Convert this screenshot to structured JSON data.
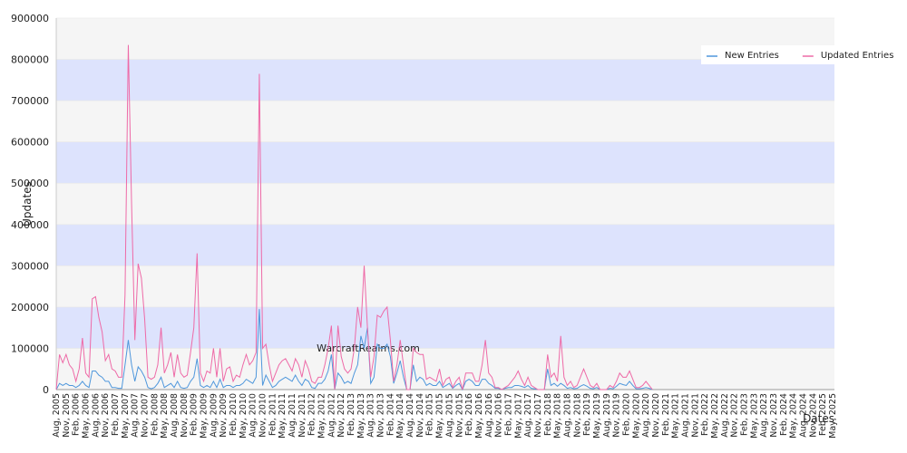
{
  "chart_data": {
    "type": "line",
    "y_label": "Updates",
    "x_label": "Dates",
    "watermark": "WarcraftRealms.com",
    "ylim": [
      0,
      900000
    ],
    "yticks": [
      0,
      100000,
      200000,
      300000,
      400000,
      500000,
      600000,
      700000,
      800000,
      900000
    ],
    "band_colors": [
      "#f5f5f5",
      "#dde3fd"
    ],
    "categories": [
      "Aug, 2005",
      null,
      null,
      "Nov, 2005",
      null,
      null,
      "Feb, 2006",
      null,
      null,
      "May, 2006",
      null,
      null,
      "Aug, 2006",
      null,
      null,
      "Nov, 2006",
      null,
      null,
      "Feb, 2007",
      null,
      null,
      "May, 2007",
      null,
      null,
      "Aug, 2007",
      null,
      null,
      "Nov, 2007",
      null,
      null,
      "Feb, 2008",
      null,
      null,
      "May, 2008",
      null,
      null,
      "Aug, 2008",
      null,
      null,
      "Nov, 2008",
      null,
      null,
      "Feb, 2009",
      null,
      null,
      "May, 2009",
      null,
      null,
      "Aug, 2009",
      null,
      null,
      "Nov, 2009",
      null,
      null,
      "Feb, 2010",
      null,
      null,
      "May, 2010",
      null,
      null,
      "Aug, 2010",
      null,
      null,
      "Nov, 2010",
      null,
      null,
      "Feb, 2011",
      null,
      null,
      "May, 2011",
      null,
      null,
      "Aug, 2011",
      null,
      null,
      "Nov, 2011",
      null,
      null,
      "Feb, 2012",
      null,
      null,
      "May, 2012",
      null,
      null,
      "Aug, 2012",
      null,
      null,
      "Nov, 2012",
      null,
      null,
      "Feb, 2013",
      null,
      null,
      "May, 2013",
      null,
      null,
      "Aug, 2013",
      null,
      null,
      "Nov, 2013",
      null,
      null,
      "Feb, 2014",
      null,
      null,
      "May, 2014",
      null,
      null,
      "Aug, 2014",
      null,
      null,
      "Nov, 2014",
      null,
      null,
      "Feb, 2015",
      null,
      null,
      "May, 2015",
      null,
      null,
      "Aug, 2015",
      null,
      null,
      "Nov, 2015",
      null,
      null,
      "Feb, 2016",
      null,
      null,
      "May, 2016",
      null,
      null,
      "Aug, 2016",
      null,
      null,
      "Nov, 2016",
      null,
      null,
      "Feb, 2017",
      null,
      null,
      "May, 2017",
      null,
      null,
      "Aug, 2017",
      null,
      null,
      "Nov, 2017",
      null,
      null,
      "Feb, 2018",
      null,
      null,
      "May, 2018",
      null,
      null,
      "Aug, 2018",
      null,
      null,
      "Nov, 2018",
      null,
      null,
      "Feb, 2019",
      null,
      null,
      "May, 2019",
      null,
      null,
      "Aug, 2019",
      null,
      null,
      "Nov, 2019",
      null,
      null,
      "Feb, 2020",
      null,
      null,
      "May, 2020",
      null,
      null,
      "Aug, 2020",
      null,
      null,
      "Nov, 2020",
      null,
      null,
      "Feb, 2021",
      null,
      null,
      "May, 2021",
      null,
      null,
      "Aug, 2021",
      null,
      null,
      "Nov, 2021",
      null,
      null,
      "Feb, 2022",
      null,
      null,
      "May, 2022",
      null,
      null,
      "Aug, 2022",
      null,
      null,
      "Nov, 2022",
      null,
      null,
      "Feb, 2023",
      null,
      null,
      "May, 2023",
      null,
      null,
      "Aug, 2023",
      null,
      null,
      "Nov, 2023",
      null,
      null,
      "Feb, 2024",
      null,
      null,
      "May, 2024",
      null,
      null,
      "Aug, 2024",
      null,
      null,
      "Nov, 2024",
      null,
      null,
      "Feb, 2025",
      null,
      null,
      "May, 2025"
    ],
    "series": [
      {
        "name": "New Entries",
        "color": "#4f97dc",
        "values": [
          0,
          15000,
          10000,
          15000,
          10000,
          10000,
          5000,
          10000,
          20000,
          10000,
          5000,
          45000,
          45000,
          35000,
          30000,
          20000,
          20000,
          5000,
          5000,
          3000,
          3000,
          60000,
          120000,
          60000,
          20000,
          55000,
          45000,
          30000,
          5000,
          2000,
          5000,
          15000,
          30000,
          5000,
          10000,
          15000,
          5000,
          20000,
          5000,
          3000,
          5000,
          20000,
          30000,
          75000,
          10000,
          5000,
          10000,
          5000,
          20000,
          5000,
          25000,
          5000,
          10000,
          10000,
          5000,
          10000,
          10000,
          15000,
          25000,
          20000,
          15000,
          30000,
          195000,
          10000,
          35000,
          20000,
          5000,
          10000,
          20000,
          25000,
          30000,
          25000,
          20000,
          35000,
          20000,
          10000,
          25000,
          20000,
          5000,
          3000,
          15000,
          15000,
          25000,
          45000,
          85000,
          0,
          40000,
          30000,
          15000,
          20000,
          15000,
          40000,
          60000,
          130000,
          100000,
          150000,
          15000,
          30000,
          110000,
          100000,
          100000,
          110000,
          80000,
          15000,
          40000,
          70000,
          30000,
          0,
          0,
          60000,
          20000,
          30000,
          25000,
          10000,
          15000,
          10000,
          10000,
          20000,
          5000,
          10000,
          15000,
          3000,
          10000,
          15000,
          0,
          20000,
          25000,
          20000,
          10000,
          10000,
          25000,
          25000,
          15000,
          10000,
          3000,
          3000,
          0,
          3000,
          5000,
          5000,
          10000,
          10000,
          8000,
          5000,
          10000,
          3000,
          2000,
          0,
          0,
          0,
          50000,
          10000,
          15000,
          8000,
          15000,
          10000,
          3000,
          5000,
          2000,
          3000,
          8000,
          12000,
          8000,
          3000,
          2000,
          5000,
          0,
          0,
          0,
          3000,
          2000,
          8000,
          15000,
          12000,
          10000,
          20000,
          10000,
          2000,
          2000,
          3000,
          5000,
          3000,
          0,
          null,
          null,
          null,
          null,
          null,
          null,
          null,
          null,
          null,
          null,
          null,
          null,
          null,
          null,
          null,
          null,
          null,
          null,
          null,
          null,
          null,
          null,
          null,
          null,
          null,
          null,
          null,
          null,
          null,
          null,
          null,
          null,
          null,
          null,
          null,
          null,
          null,
          null,
          null,
          null,
          null,
          null,
          null,
          null,
          null,
          null,
          null,
          null,
          null,
          null,
          null,
          null,
          null,
          null,
          null
        ]
      },
      {
        "name": "Updated Entries",
        "color": "#ee6aa7",
        "values": [
          0,
          85000,
          65000,
          85000,
          60000,
          50000,
          20000,
          50000,
          125000,
          40000,
          30000,
          220000,
          225000,
          175000,
          140000,
          70000,
          85000,
          50000,
          45000,
          30000,
          30000,
          230000,
          835000,
          450000,
          120000,
          305000,
          270000,
          170000,
          30000,
          25000,
          30000,
          60000,
          150000,
          40000,
          60000,
          90000,
          30000,
          85000,
          40000,
          30000,
          35000,
          90000,
          150000,
          330000,
          40000,
          20000,
          45000,
          40000,
          100000,
          30000,
          100000,
          20000,
          50000,
          55000,
          20000,
          35000,
          30000,
          60000,
          85000,
          60000,
          70000,
          90000,
          765000,
          100000,
          110000,
          60000,
          20000,
          40000,
          60000,
          70000,
          75000,
          60000,
          45000,
          75000,
          60000,
          30000,
          70000,
          50000,
          20000,
          15000,
          30000,
          30000,
          60000,
          100000,
          155000,
          0,
          155000,
          80000,
          50000,
          40000,
          50000,
          100000,
          200000,
          150000,
          300000,
          150000,
          30000,
          80000,
          180000,
          175000,
          190000,
          200000,
          120000,
          20000,
          60000,
          120000,
          60000,
          0,
          0,
          100000,
          90000,
          85000,
          85000,
          25000,
          30000,
          25000,
          20000,
          50000,
          10000,
          25000,
          30000,
          5000,
          20000,
          30000,
          0,
          40000,
          40000,
          40000,
          20000,
          20000,
          60000,
          120000,
          40000,
          30000,
          5000,
          5000,
          0,
          5000,
          10000,
          20000,
          30000,
          45000,
          25000,
          10000,
          30000,
          10000,
          5000,
          0,
          0,
          0,
          85000,
          30000,
          40000,
          20000,
          130000,
          30000,
          10000,
          20000,
          5000,
          10000,
          30000,
          50000,
          30000,
          10000,
          5000,
          15000,
          0,
          0,
          0,
          10000,
          5000,
          20000,
          40000,
          30000,
          30000,
          45000,
          25000,
          5000,
          5000,
          10000,
          20000,
          10000,
          0,
          null,
          null,
          null,
          null,
          null,
          null,
          null,
          null,
          null,
          null,
          null,
          null,
          null,
          null,
          null,
          null,
          null,
          null,
          null,
          null,
          null,
          null,
          null,
          null,
          null,
          null,
          null,
          null,
          null,
          null,
          null,
          null,
          null,
          null,
          null,
          null,
          null,
          null,
          null,
          null,
          null,
          null,
          null,
          null,
          null,
          null,
          null,
          null,
          null,
          null,
          null,
          null,
          null,
          null,
          null
        ]
      }
    ]
  }
}
